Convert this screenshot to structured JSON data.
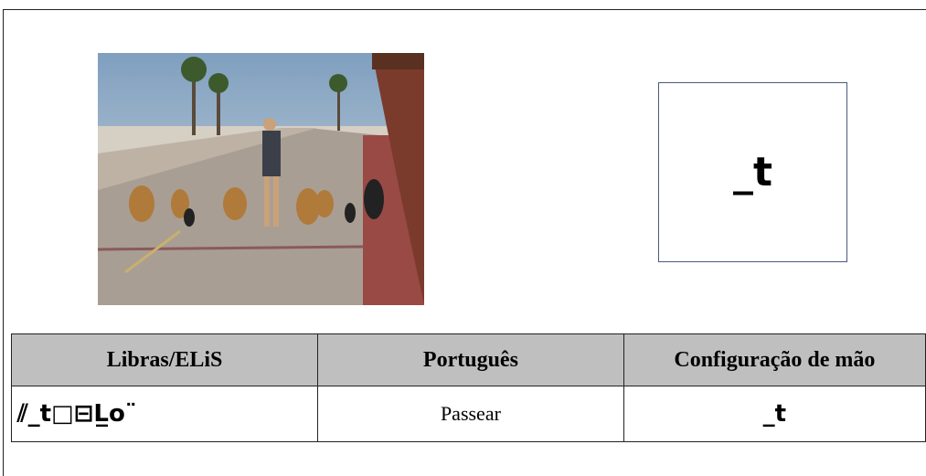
{
  "figure": {
    "handshape_box": {
      "symbol": "_t"
    }
  },
  "table": {
    "header": [
      "Libras/ELiS",
      "Português",
      "Configuração de mão"
    ],
    "rows": [
      [
        "⫽_t□⊟L̲o¨",
        "Passear",
        "_t"
      ]
    ]
  }
}
